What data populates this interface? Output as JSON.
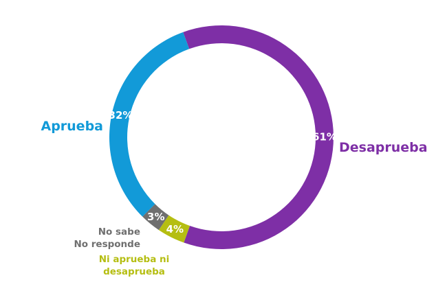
{
  "chart_data": {
    "type": "pie",
    "style": "donut",
    "title": "",
    "start": "top, clockwise",
    "slices": [
      {
        "key": "desaprueba",
        "label": "Desaprueba",
        "value": 61,
        "value_text": "61%",
        "color": "#7e2fa6",
        "label_lines": [
          "Desaprueba"
        ]
      },
      {
        "key": "ni",
        "label": "Ni aprueba ni desaprueba",
        "value": 4,
        "value_text": "4%",
        "color": "#b5be12",
        "label_lines": [
          "Ni aprueba ni",
          "desaprueba"
        ]
      },
      {
        "key": "nosabe",
        "label": "No sabe No responde",
        "value": 3,
        "value_text": "3%",
        "color": "#6f6f6f",
        "label_lines": [
          "No sabe",
          "No responde"
        ]
      },
      {
        "key": "aprueba",
        "label": "Aprueba",
        "value": 32,
        "value_text": "32%",
        "color": "#129ad8",
        "label_lines": [
          "Aprueba"
        ]
      }
    ]
  }
}
